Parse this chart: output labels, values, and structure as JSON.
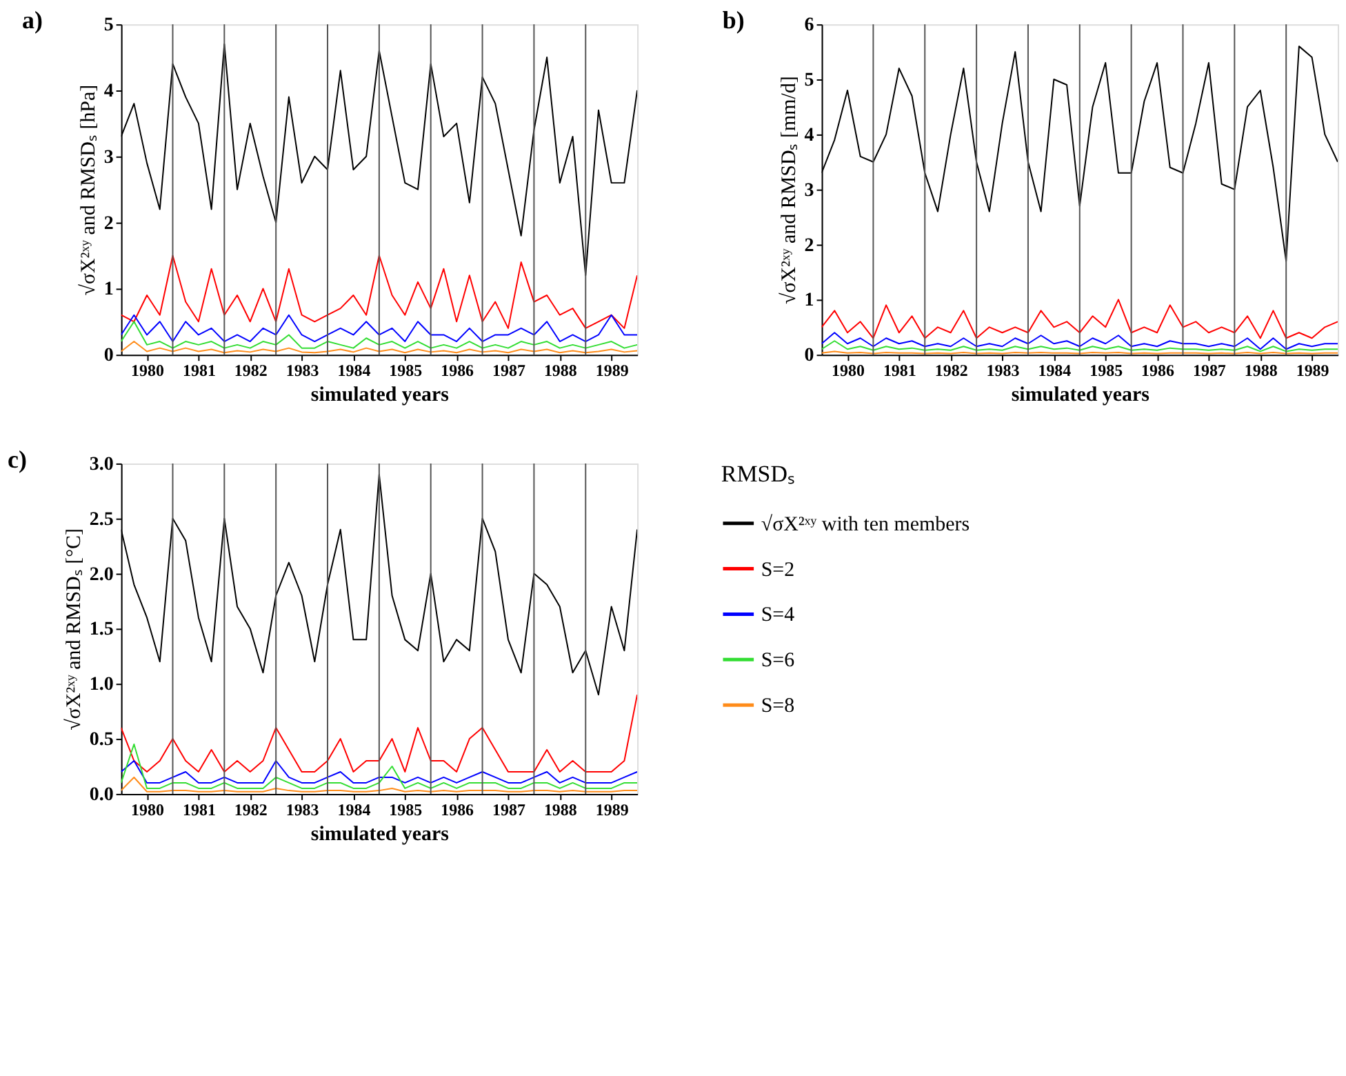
{
  "chart_data": [
    {
      "type": "line",
      "title": "a)",
      "xlabel": "simulated years",
      "ylabel": "√σX²ˣʸ and RMSDₛ [hPa]",
      "x": [
        1980,
        1980.25,
        1980.5,
        1980.75,
        1981,
        1981.25,
        1981.5,
        1981.75,
        1982,
        1982.25,
        1982.5,
        1982.75,
        1983,
        1983.25,
        1983.5,
        1983.75,
        1984,
        1984.25,
        1984.5,
        1984.75,
        1985,
        1985.25,
        1985.5,
        1985.75,
        1986,
        1986.25,
        1986.5,
        1986.75,
        1987,
        1987.25,
        1987.5,
        1987.75,
        1988,
        1988.25,
        1988.5,
        1988.75,
        1989,
        1989.25,
        1989.5,
        1989.75,
        1990
      ],
      "xlim": [
        1980,
        1990
      ],
      "xticks": [
        {
          "value": 1980.5,
          "label": "1980"
        },
        {
          "value": 1981.5,
          "label": "1981"
        },
        {
          "value": 1982.5,
          "label": "1982"
        },
        {
          "value": 1983.5,
          "label": "1983"
        },
        {
          "value": 1984.5,
          "label": "1984"
        },
        {
          "value": 1985.5,
          "label": "1985"
        },
        {
          "value": 1986.5,
          "label": "1986"
        },
        {
          "value": 1987.5,
          "label": "1987"
        },
        {
          "value": 1988.5,
          "label": "1988"
        },
        {
          "value": 1989.5,
          "label": "1989"
        }
      ],
      "ylim": [
        0,
        5
      ],
      "yticks": [
        0,
        1,
        2,
        3,
        4,
        5
      ],
      "grid": false,
      "legend": false,
      "ref_lines": [
        {
          "axis": "x",
          "value": 1981,
          "label": null
        },
        {
          "axis": "x",
          "value": 1982,
          "label": null
        },
        {
          "axis": "x",
          "value": 1983,
          "label": null
        },
        {
          "axis": "x",
          "value": 1984,
          "label": null
        },
        {
          "axis": "x",
          "value": 1985,
          "label": null
        },
        {
          "axis": "x",
          "value": 1986,
          "label": null
        },
        {
          "axis": "x",
          "value": 1987,
          "label": null
        },
        {
          "axis": "x",
          "value": 1988,
          "label": null
        },
        {
          "axis": "x",
          "value": 1989,
          "label": null
        }
      ],
      "series": [
        {
          "color": "#000000",
          "values": [
            3.3,
            3.8,
            2.9,
            2.2,
            4.4,
            3.9,
            3.5,
            2.2,
            4.7,
            2.5,
            3.5,
            2.7,
            2.0,
            3.9,
            2.6,
            3.0,
            2.8,
            4.3,
            2.8,
            3.0,
            4.6,
            3.6,
            2.6,
            2.5,
            4.4,
            3.3,
            3.5,
            2.3,
            4.2,
            3.8,
            2.8,
            1.8,
            3.4,
            4.5,
            2.6,
            3.3,
            1.2,
            3.7,
            2.6,
            2.6,
            4.0
          ]
        },
        {
          "color": "#ff0000",
          "values": [
            0.6,
            0.5,
            0.9,
            0.6,
            1.5,
            0.8,
            0.5,
            1.3,
            0.6,
            0.9,
            0.5,
            1.0,
            0.5,
            1.3,
            0.6,
            0.5,
            0.6,
            0.7,
            0.9,
            0.6,
            1.5,
            0.9,
            0.6,
            1.1,
            0.7,
            1.3,
            0.5,
            1.2,
            0.5,
            0.8,
            0.4,
            1.4,
            0.8,
            0.9,
            0.6,
            0.7,
            0.4,
            0.5,
            0.6,
            0.4,
            1.2
          ]
        },
        {
          "color": "#0000ff",
          "values": [
            0.3,
            0.6,
            0.3,
            0.5,
            0.2,
            0.5,
            0.3,
            0.4,
            0.2,
            0.3,
            0.2,
            0.4,
            0.3,
            0.6,
            0.3,
            0.2,
            0.3,
            0.4,
            0.3,
            0.5,
            0.3,
            0.4,
            0.2,
            0.5,
            0.3,
            0.3,
            0.2,
            0.4,
            0.2,
            0.3,
            0.3,
            0.4,
            0.3,
            0.5,
            0.2,
            0.3,
            0.2,
            0.3,
            0.6,
            0.3,
            0.3
          ]
        },
        {
          "color": "#33dd33",
          "values": [
            0.2,
            0.5,
            0.15,
            0.2,
            0.1,
            0.2,
            0.15,
            0.2,
            0.1,
            0.15,
            0.1,
            0.2,
            0.15,
            0.3,
            0.1,
            0.1,
            0.2,
            0.15,
            0.1,
            0.25,
            0.15,
            0.2,
            0.1,
            0.2,
            0.1,
            0.15,
            0.1,
            0.2,
            0.1,
            0.15,
            0.1,
            0.2,
            0.15,
            0.2,
            0.1,
            0.15,
            0.1,
            0.15,
            0.2,
            0.1,
            0.15
          ]
        },
        {
          "color": "#ff8c1a",
          "values": [
            0.05,
            0.2,
            0.05,
            0.1,
            0.05,
            0.1,
            0.05,
            0.08,
            0.03,
            0.06,
            0.04,
            0.08,
            0.05,
            0.1,
            0.04,
            0.03,
            0.05,
            0.08,
            0.04,
            0.1,
            0.05,
            0.08,
            0.03,
            0.08,
            0.04,
            0.06,
            0.03,
            0.08,
            0.04,
            0.06,
            0.03,
            0.08,
            0.05,
            0.08,
            0.03,
            0.06,
            0.03,
            0.05,
            0.08,
            0.04,
            0.06
          ]
        }
      ]
    },
    {
      "type": "line",
      "title": "b)",
      "xlabel": "simulated years",
      "ylabel": "√σX²ˣʸ and RMSDₛ [mm/d]",
      "x": [
        1980,
        1980.25,
        1980.5,
        1980.75,
        1981,
        1981.25,
        1981.5,
        1981.75,
        1982,
        1982.25,
        1982.5,
        1982.75,
        1983,
        1983.25,
        1983.5,
        1983.75,
        1984,
        1984.25,
        1984.5,
        1984.75,
        1985,
        1985.25,
        1985.5,
        1985.75,
        1986,
        1986.25,
        1986.5,
        1986.75,
        1987,
        1987.25,
        1987.5,
        1987.75,
        1988,
        1988.25,
        1988.5,
        1988.75,
        1989,
        1989.25,
        1989.5,
        1989.75,
        1990
      ],
      "xlim": [
        1980,
        1990
      ],
      "xticks": [
        {
          "value": 1980.5,
          "label": "1980"
        },
        {
          "value": 1981.5,
          "label": "1981"
        },
        {
          "value": 1982.5,
          "label": "1982"
        },
        {
          "value": 1983.5,
          "label": "1983"
        },
        {
          "value": 1984.5,
          "label": "1984"
        },
        {
          "value": 1985.5,
          "label": "1985"
        },
        {
          "value": 1986.5,
          "label": "1986"
        },
        {
          "value": 1987.5,
          "label": "1987"
        },
        {
          "value": 1988.5,
          "label": "1988"
        },
        {
          "value": 1989.5,
          "label": "1989"
        }
      ],
      "ylim": [
        0,
        6
      ],
      "yticks": [
        0,
        1,
        2,
        3,
        4,
        5,
        6
      ],
      "grid": false,
      "legend": false,
      "ref_lines": [
        {
          "axis": "x",
          "value": 1981,
          "label": null
        },
        {
          "axis": "x",
          "value": 1982,
          "label": null
        },
        {
          "axis": "x",
          "value": 1983,
          "label": null
        },
        {
          "axis": "x",
          "value": 1984,
          "label": null
        },
        {
          "axis": "x",
          "value": 1985,
          "label": null
        },
        {
          "axis": "x",
          "value": 1986,
          "label": null
        },
        {
          "axis": "x",
          "value": 1987,
          "label": null
        },
        {
          "axis": "x",
          "value": 1988,
          "label": null
        },
        {
          "axis": "x",
          "value": 1989,
          "label": null
        }
      ],
      "series": [
        {
          "color": "#000000",
          "values": [
            3.3,
            3.9,
            4.8,
            3.6,
            3.5,
            4.0,
            5.2,
            4.7,
            3.3,
            2.6,
            4.0,
            5.2,
            3.5,
            2.6,
            4.2,
            5.5,
            3.5,
            2.6,
            5.0,
            4.9,
            2.7,
            4.5,
            5.3,
            3.3,
            3.3,
            4.6,
            5.3,
            3.4,
            3.3,
            4.2,
            5.3,
            3.1,
            3.0,
            4.5,
            4.8,
            3.4,
            1.7,
            5.6,
            5.4,
            4.0,
            3.5
          ]
        },
        {
          "color": "#ff0000",
          "values": [
            0.5,
            0.8,
            0.4,
            0.6,
            0.3,
            0.9,
            0.4,
            0.7,
            0.3,
            0.5,
            0.4,
            0.8,
            0.3,
            0.5,
            0.4,
            0.5,
            0.4,
            0.8,
            0.5,
            0.6,
            0.4,
            0.7,
            0.5,
            1.0,
            0.4,
            0.5,
            0.4,
            0.9,
            0.5,
            0.6,
            0.4,
            0.5,
            0.4,
            0.7,
            0.3,
            0.8,
            0.3,
            0.4,
            0.3,
            0.5,
            0.6
          ]
        },
        {
          "color": "#0000ff",
          "values": [
            0.2,
            0.4,
            0.2,
            0.3,
            0.15,
            0.3,
            0.2,
            0.25,
            0.15,
            0.2,
            0.15,
            0.3,
            0.15,
            0.2,
            0.15,
            0.3,
            0.2,
            0.35,
            0.2,
            0.25,
            0.15,
            0.3,
            0.2,
            0.35,
            0.15,
            0.2,
            0.15,
            0.25,
            0.2,
            0.2,
            0.15,
            0.2,
            0.15,
            0.3,
            0.1,
            0.3,
            0.1,
            0.2,
            0.15,
            0.2,
            0.2
          ]
        },
        {
          "color": "#33dd33",
          "values": [
            0.1,
            0.25,
            0.1,
            0.15,
            0.08,
            0.15,
            0.1,
            0.12,
            0.08,
            0.1,
            0.08,
            0.15,
            0.08,
            0.1,
            0.08,
            0.15,
            0.1,
            0.15,
            0.1,
            0.12,
            0.08,
            0.15,
            0.1,
            0.15,
            0.08,
            0.1,
            0.08,
            0.12,
            0.1,
            0.1,
            0.08,
            0.1,
            0.08,
            0.15,
            0.06,
            0.15,
            0.06,
            0.1,
            0.08,
            0.1,
            0.1
          ]
        },
        {
          "color": "#ff8c1a",
          "values": [
            0.03,
            0.06,
            0.03,
            0.04,
            0.02,
            0.04,
            0.03,
            0.03,
            0.02,
            0.03,
            0.02,
            0.04,
            0.02,
            0.03,
            0.02,
            0.04,
            0.03,
            0.04,
            0.03,
            0.03,
            0.02,
            0.04,
            0.03,
            0.04,
            0.02,
            0.03,
            0.02,
            0.03,
            0.03,
            0.03,
            0.02,
            0.03,
            0.02,
            0.04,
            0.02,
            0.04,
            0.02,
            0.03,
            0.02,
            0.03,
            0.03
          ]
        }
      ]
    },
    {
      "type": "line",
      "title": "c)",
      "xlabel": "simulated years",
      "ylabel": "√σX²ˣʸ and RMSDₛ [°C]",
      "legend_title": "RMSDₛ",
      "x": [
        1980,
        1980.25,
        1980.5,
        1980.75,
        1981,
        1981.25,
        1981.5,
        1981.75,
        1982,
        1982.25,
        1982.5,
        1982.75,
        1983,
        1983.25,
        1983.5,
        1983.75,
        1984,
        1984.25,
        1984.5,
        1984.75,
        1985,
        1985.25,
        1985.5,
        1985.75,
        1986,
        1986.25,
        1986.5,
        1986.75,
        1987,
        1987.25,
        1987.5,
        1987.75,
        1988,
        1988.25,
        1988.5,
        1988.75,
        1989,
        1989.25,
        1989.5,
        1989.75,
        1990
      ],
      "xlim": [
        1980,
        1990
      ],
      "xticks": [
        {
          "value": 1980.5,
          "label": "1980"
        },
        {
          "value": 1981.5,
          "label": "1981"
        },
        {
          "value": 1982.5,
          "label": "1982"
        },
        {
          "value": 1983.5,
          "label": "1983"
        },
        {
          "value": 1984.5,
          "label": "1984"
        },
        {
          "value": 1985.5,
          "label": "1985"
        },
        {
          "value": 1986.5,
          "label": "1986"
        },
        {
          "value": 1987.5,
          "label": "1987"
        },
        {
          "value": 1988.5,
          "label": "1988"
        },
        {
          "value": 1989.5,
          "label": "1989"
        }
      ],
      "ylim": [
        0,
        3
      ],
      "yticks": [
        {
          "value": 0,
          "label": "0.0"
        },
        {
          "value": 0.5,
          "label": "0.5"
        },
        {
          "value": 1,
          "label": "1.0"
        },
        {
          "value": 1.5,
          "label": "1.5"
        },
        {
          "value": 2,
          "label": "2.0"
        },
        {
          "value": 2.5,
          "label": "2.5"
        },
        {
          "value": 3,
          "label": "3.0"
        }
      ],
      "grid": false,
      "legend": "right",
      "ref_lines": [
        {
          "axis": "x",
          "value": 1981,
          "label": null
        },
        {
          "axis": "x",
          "value": 1982,
          "label": null
        },
        {
          "axis": "x",
          "value": 1983,
          "label": null
        },
        {
          "axis": "x",
          "value": 1984,
          "label": null
        },
        {
          "axis": "x",
          "value": 1985,
          "label": null
        },
        {
          "axis": "x",
          "value": 1986,
          "label": null
        },
        {
          "axis": "x",
          "value": 1987,
          "label": null
        },
        {
          "axis": "x",
          "value": 1988,
          "label": null
        },
        {
          "axis": "x",
          "value": 1989,
          "label": null
        }
      ],
      "series": [
        {
          "name": "√σX²ˣʸ with ten members",
          "color": "#000000",
          "values": [
            2.4,
            1.9,
            1.6,
            1.2,
            2.5,
            2.3,
            1.6,
            1.2,
            2.5,
            1.7,
            1.5,
            1.1,
            1.8,
            2.1,
            1.8,
            1.2,
            1.9,
            2.4,
            1.4,
            1.4,
            2.9,
            1.8,
            1.4,
            1.3,
            2.0,
            1.2,
            1.4,
            1.3,
            2.5,
            2.2,
            1.4,
            1.1,
            2.0,
            1.9,
            1.7,
            1.1,
            1.3,
            0.9,
            1.7,
            1.3,
            2.4
          ]
        },
        {
          "name": "S=2",
          "color": "#ff0000",
          "values": [
            0.6,
            0.3,
            0.2,
            0.3,
            0.5,
            0.3,
            0.2,
            0.4,
            0.2,
            0.3,
            0.2,
            0.3,
            0.6,
            0.4,
            0.2,
            0.2,
            0.3,
            0.5,
            0.2,
            0.3,
            0.3,
            0.5,
            0.2,
            0.6,
            0.3,
            0.3,
            0.2,
            0.5,
            0.6,
            0.4,
            0.2,
            0.2,
            0.2,
            0.4,
            0.2,
            0.3,
            0.2,
            0.2,
            0.2,
            0.3,
            0.9
          ]
        },
        {
          "name": "S=4",
          "color": "#0000ff",
          "values": [
            0.2,
            0.3,
            0.1,
            0.1,
            0.15,
            0.2,
            0.1,
            0.1,
            0.15,
            0.1,
            0.1,
            0.1,
            0.3,
            0.15,
            0.1,
            0.1,
            0.15,
            0.2,
            0.1,
            0.1,
            0.15,
            0.15,
            0.1,
            0.15,
            0.1,
            0.15,
            0.1,
            0.15,
            0.2,
            0.15,
            0.1,
            0.1,
            0.15,
            0.2,
            0.1,
            0.15,
            0.1,
            0.1,
            0.1,
            0.15,
            0.2
          ]
        },
        {
          "name": "S=6",
          "color": "#33dd33",
          "values": [
            0.1,
            0.45,
            0.05,
            0.05,
            0.1,
            0.1,
            0.05,
            0.05,
            0.1,
            0.05,
            0.05,
            0.05,
            0.15,
            0.1,
            0.05,
            0.05,
            0.1,
            0.1,
            0.05,
            0.05,
            0.1,
            0.25,
            0.05,
            0.1,
            0.05,
            0.1,
            0.05,
            0.1,
            0.1,
            0.1,
            0.05,
            0.05,
            0.1,
            0.1,
            0.05,
            0.1,
            0.05,
            0.05,
            0.05,
            0.1,
            0.1
          ]
        },
        {
          "name": "S=8",
          "color": "#ff8c1a",
          "values": [
            0.03,
            0.15,
            0.02,
            0.02,
            0.03,
            0.03,
            0.02,
            0.02,
            0.03,
            0.02,
            0.02,
            0.02,
            0.05,
            0.03,
            0.02,
            0.02,
            0.03,
            0.03,
            0.02,
            0.02,
            0.03,
            0.05,
            0.02,
            0.03,
            0.02,
            0.03,
            0.02,
            0.03,
            0.03,
            0.03,
            0.02,
            0.02,
            0.03,
            0.03,
            0.02,
            0.03,
            0.02,
            0.02,
            0.02,
            0.03,
            0.03
          ]
        }
      ]
    }
  ]
}
